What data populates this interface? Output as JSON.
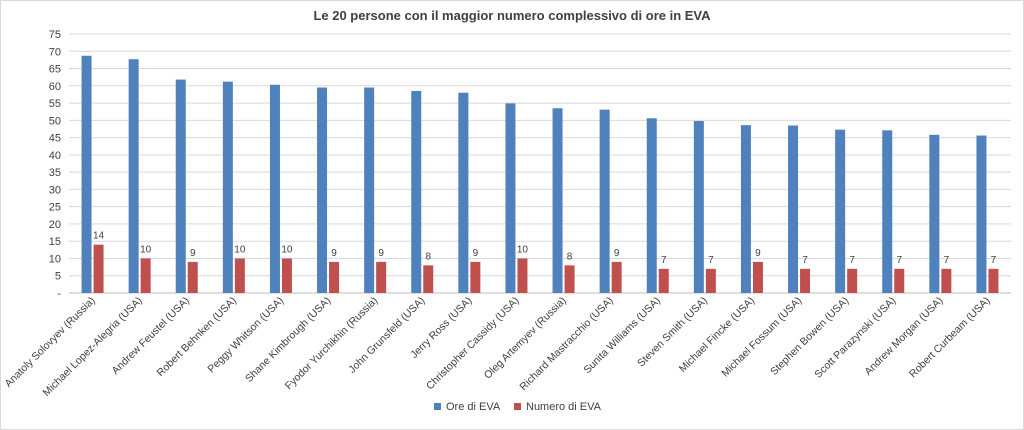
{
  "chart_data": {
    "type": "bar",
    "title": "Le 20 persone con il maggior numero complessivo di ore in EVA",
    "xlabel": "",
    "ylabel": "",
    "ylim": [
      0,
      75
    ],
    "yticks": [
      "-",
      "5",
      "10",
      "15",
      "20",
      "25",
      "30",
      "35",
      "40",
      "45",
      "50",
      "55",
      "60",
      "65",
      "70",
      "75"
    ],
    "grid": true,
    "legend_position": "bottom",
    "categories": [
      "Anatoly Solovyev (Russia)",
      "Michael Lopez-Alegria (USA)",
      "Andrew Feustel (USA)",
      "Robert Behnken (USA)",
      "Peggy Whitson (USA)",
      "Shane Kimbrough (USA)",
      "Fyodor Yurchikhin (Russia)",
      "John Grunsfeld (USA)",
      "Jerry Ross (USA)",
      "Christopher Cassidy (USA)",
      "Oleg Artemyev (Russia)",
      "Richard Mastracchio (USA)",
      "Sunita Williams (USA)",
      "Steven Smith (USA)",
      "Michael Fincke (USA)",
      "Michael Fossum (USA)",
      "Stephen Bowen (USA)",
      "Scott Parazynski (USA)",
      "Andrew Morgan (USA)",
      "Robert Curbeam (USA)"
    ],
    "series": [
      {
        "name": "Ore di EVA",
        "color": "#4f81bd",
        "values": [
          68.7,
          67.7,
          61.8,
          61.2,
          60.3,
          59.5,
          59.5,
          58.5,
          58.0,
          54.9,
          53.5,
          53.1,
          50.6,
          49.8,
          48.6,
          48.5,
          47.3,
          47.1,
          45.8,
          45.6
        ]
      },
      {
        "name": "Numero di EVA",
        "color": "#c0504d",
        "values": [
          14,
          10,
          9,
          10,
          10,
          9,
          9,
          8,
          9,
          10,
          8,
          9,
          7,
          7,
          9,
          7,
          7,
          7,
          7,
          7
        ],
        "data_labels": [
          "14",
          "10",
          "9",
          "10",
          "10",
          "9",
          "9",
          "8",
          "9",
          "10",
          "8",
          "9",
          "7",
          "7",
          "9",
          "7",
          "7",
          "7",
          "7",
          "7"
        ]
      }
    ]
  }
}
